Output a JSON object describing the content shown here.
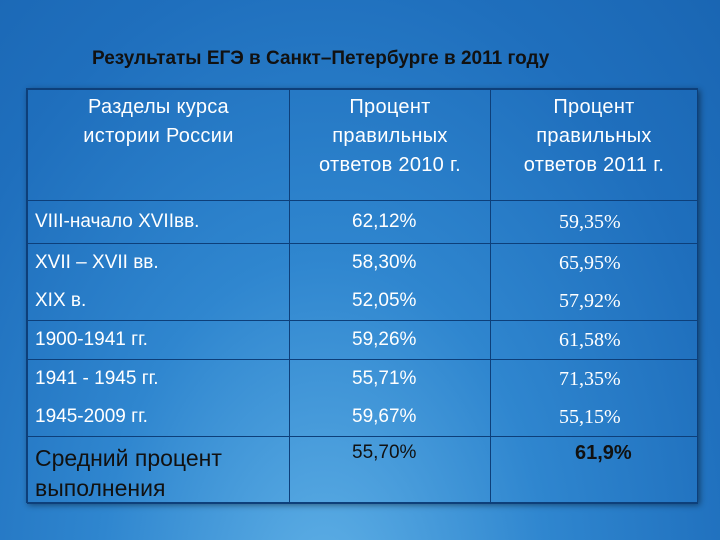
{
  "slide": {
    "title": "Результаты ЕГЭ в Санкт–Петербурге в 2011 году"
  },
  "table": {
    "headers": {
      "col1": [
        "Разделы курса",
        "истории России"
      ],
      "col2": [
        "Процент",
        "правильных",
        "ответов  2010 г."
      ],
      "col3": [
        "Процент",
        "правильных",
        "ответов  2011 г."
      ]
    },
    "rows": [
      {
        "sections": [
          "VIII-начало XVIIвв."
        ],
        "p2010": [
          "62,12%"
        ],
        "p2011": [
          "59,35%"
        ]
      },
      {
        "sections": [
          "XVII – XVII вв.",
          "XIX в."
        ],
        "p2010": [
          "58,30%",
          "52,05%"
        ],
        "p2011": [
          "65,95%",
          "57,92%"
        ]
      },
      {
        "sections": [
          "1900-1941 гг."
        ],
        "p2010": [
          "59,26%"
        ],
        "p2011": [
          "61,58%"
        ]
      },
      {
        "sections": [
          "1941 - 1945 гг.",
          "1945-2009 гг."
        ],
        "p2010": [
          "55,71%",
          "59,67%"
        ],
        "p2011": [
          "71,35%",
          "55,15%"
        ]
      }
    ],
    "average": {
      "label": [
        "Средний процент",
        "выполнения"
      ],
      "p2010": "55,70%",
      "p2011": "61,9%"
    }
  }
}
